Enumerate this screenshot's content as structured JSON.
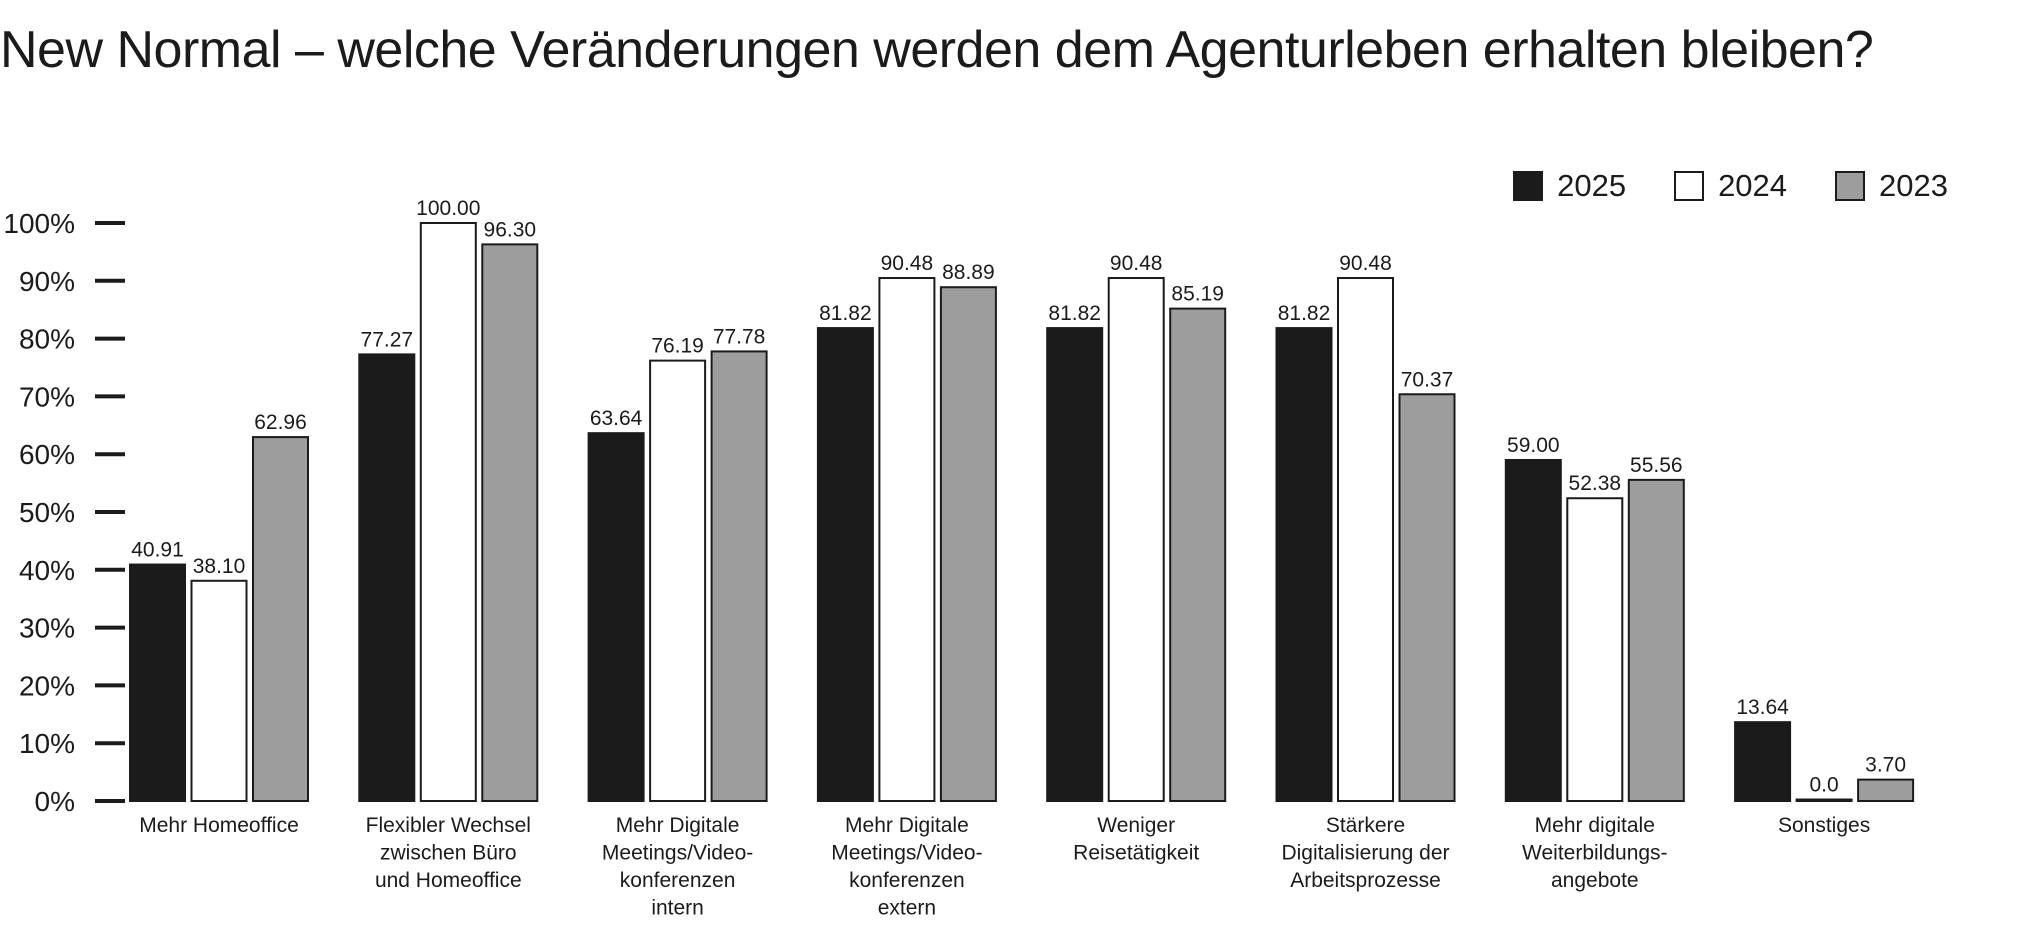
{
  "chart_data": {
    "type": "bar",
    "title": "New Normal – welche Veränderungen werden dem Agenturleben erhalten bleiben?",
    "xlabel": "",
    "ylabel": "",
    "ylim": [
      0,
      100
    ],
    "yticks": [
      "0%",
      "10%",
      "20%",
      "30%",
      "40%",
      "50%",
      "60%",
      "70%",
      "80%",
      "90%",
      "100%"
    ],
    "legend_position": "top-right",
    "categories": [
      [
        "Mehr Homeoffice"
      ],
      [
        "Flexibler Wechsel",
        "zwischen Büro",
        "und Homeoffice"
      ],
      [
        "Mehr Digitale",
        "Meetings/Video-",
        "konferenzen",
        "intern"
      ],
      [
        "Mehr Digitale",
        "Meetings/Video-",
        "konferenzen",
        "extern"
      ],
      [
        "Weniger",
        "Reisetätigkeit"
      ],
      [
        "Stärkere",
        "Digitalisierung der",
        "Arbeitsprozesse"
      ],
      [
        "Mehr digitale",
        "Weiterbildungs-",
        "angebote"
      ],
      [
        "Sonstiges"
      ]
    ],
    "series": [
      {
        "name": "2025",
        "color": "#1b1b1b",
        "values": [
          40.91,
          77.27,
          63.64,
          81.82,
          81.82,
          81.82,
          59.0,
          13.64
        ],
        "labels": [
          "40.91",
          "77.27",
          "63.64",
          "81.82",
          "81.82",
          "81.82",
          "59.00",
          "13.64"
        ]
      },
      {
        "name": "2024",
        "color": "#ffffff",
        "values": [
          38.1,
          100.0,
          76.19,
          90.48,
          90.48,
          90.48,
          52.38,
          0.0
        ],
        "labels": [
          "38.10",
          "100.00",
          "76.19",
          "90.48",
          "90.48",
          "90.48",
          "52.38",
          "0.0"
        ]
      },
      {
        "name": "2023",
        "color": "#9d9d9d",
        "values": [
          62.96,
          96.3,
          77.78,
          88.89,
          85.19,
          70.37,
          55.56,
          3.7
        ],
        "labels": [
          "62.96",
          "96.30",
          "77.78",
          "88.89",
          "85.19",
          "70.37",
          "55.56",
          "3.70"
        ]
      }
    ]
  }
}
